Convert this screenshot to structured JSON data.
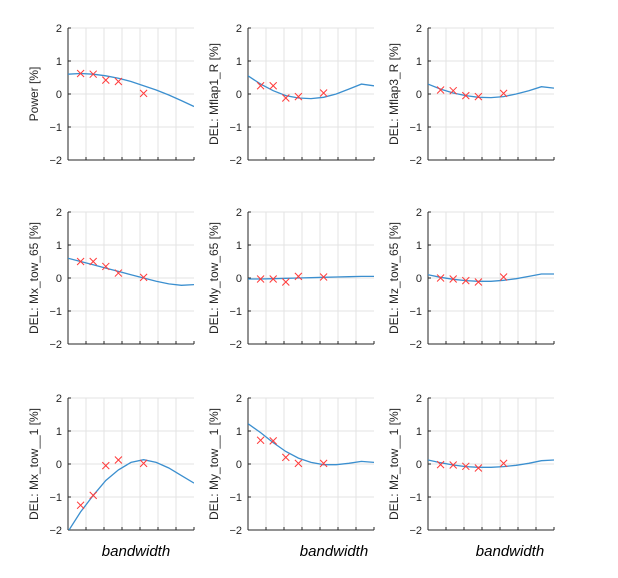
{
  "colors": {
    "fit_line": "#3b8fcf",
    "markers": "#ff3b3b",
    "grid": "#e3e3e3",
    "axis": "#262626"
  },
  "chart_data": [
    {
      "type": "line",
      "ylabel": "Power [%]",
      "ylim": [
        -2,
        2
      ],
      "yticks": [
        "-2",
        "-1",
        "0",
        "1",
        "2"
      ],
      "xlim": [
        0,
        1
      ],
      "grid": true,
      "xticklabels": false,
      "series": [
        {
          "kind": "fit",
          "x": [
            0.0,
            0.1,
            0.2,
            0.3,
            0.4,
            0.5,
            0.6,
            0.7,
            0.8,
            0.9,
            1.0
          ],
          "y": [
            0.6,
            0.62,
            0.6,
            0.55,
            0.48,
            0.38,
            0.25,
            0.12,
            -0.03,
            -0.2,
            -0.38
          ]
        },
        {
          "kind": "markers",
          "marker": "x",
          "x": [
            0.1,
            0.2,
            0.3,
            0.4,
            0.6
          ],
          "y": [
            0.62,
            0.6,
            0.42,
            0.38,
            0.02
          ]
        }
      ]
    },
    {
      "type": "line",
      "ylabel": "DEL: Mflap1_R [%]",
      "ylim": [
        -2,
        2
      ],
      "yticks": [
        "-2",
        "-1",
        "0",
        "1",
        "2"
      ],
      "xlim": [
        0,
        1
      ],
      "grid": true,
      "xticklabels": false,
      "series": [
        {
          "kind": "fit",
          "x": [
            0.0,
            0.1,
            0.2,
            0.3,
            0.4,
            0.5,
            0.6,
            0.7,
            0.8,
            0.9,
            1.0
          ],
          "y": [
            0.55,
            0.3,
            0.1,
            -0.05,
            -0.12,
            -0.14,
            -0.1,
            0.0,
            0.15,
            0.3,
            0.25
          ]
        },
        {
          "kind": "markers",
          "marker": "x",
          "x": [
            0.1,
            0.2,
            0.3,
            0.4,
            0.6
          ],
          "y": [
            0.25,
            0.25,
            -0.12,
            -0.08,
            0.03
          ]
        }
      ]
    },
    {
      "type": "line",
      "ylabel": "DEL: Mflap3_R [%]",
      "ylim": [
        -2,
        2
      ],
      "yticks": [
        "-2",
        "-1",
        "0",
        "1",
        "2"
      ],
      "xlim": [
        0,
        1
      ],
      "grid": true,
      "xticklabels": false,
      "series": [
        {
          "kind": "fit",
          "x": [
            0.0,
            0.1,
            0.2,
            0.3,
            0.4,
            0.5,
            0.6,
            0.7,
            0.8,
            0.9,
            1.0
          ],
          "y": [
            0.3,
            0.15,
            0.03,
            -0.05,
            -0.1,
            -0.11,
            -0.08,
            0.0,
            0.1,
            0.22,
            0.18
          ]
        },
        {
          "kind": "markers",
          "marker": "x",
          "x": [
            0.1,
            0.2,
            0.3,
            0.4,
            0.6
          ],
          "y": [
            0.12,
            0.1,
            -0.05,
            -0.08,
            0.02
          ]
        }
      ]
    },
    {
      "type": "line",
      "ylabel": "DEL: Mx_tow_65 [%]",
      "ylim": [
        -2,
        2
      ],
      "yticks": [
        "-2",
        "-1",
        "0",
        "1",
        "2"
      ],
      "xlim": [
        0,
        1
      ],
      "grid": true,
      "xticklabels": false,
      "series": [
        {
          "kind": "fit",
          "x": [
            0.0,
            0.1,
            0.2,
            0.3,
            0.4,
            0.5,
            0.6,
            0.7,
            0.8,
            0.9,
            1.0
          ],
          "y": [
            0.6,
            0.5,
            0.4,
            0.3,
            0.2,
            0.1,
            0.0,
            -0.1,
            -0.18,
            -0.22,
            -0.2
          ]
        },
        {
          "kind": "markers",
          "marker": "x",
          "x": [
            0.1,
            0.2,
            0.3,
            0.4,
            0.6
          ],
          "y": [
            0.5,
            0.5,
            0.35,
            0.15,
            0.02
          ]
        }
      ]
    },
    {
      "type": "line",
      "ylabel": "DEL: My_tow_65 [%]",
      "ylim": [
        -2,
        2
      ],
      "yticks": [
        "-2",
        "-1",
        "0",
        "1",
        "2"
      ],
      "xlim": [
        0,
        1
      ],
      "grid": true,
      "xticklabels": false,
      "series": [
        {
          "kind": "fit",
          "x": [
            0.0,
            0.1,
            0.2,
            0.3,
            0.4,
            0.5,
            0.6,
            0.7,
            0.8,
            0.9,
            1.0
          ],
          "y": [
            -0.03,
            -0.03,
            -0.02,
            -0.01,
            0.0,
            0.01,
            0.02,
            0.03,
            0.04,
            0.05,
            0.05
          ]
        },
        {
          "kind": "markers",
          "marker": "x",
          "x": [
            0.1,
            0.2,
            0.3,
            0.4,
            0.6
          ],
          "y": [
            -0.03,
            -0.03,
            -0.12,
            0.05,
            0.03
          ]
        }
      ]
    },
    {
      "type": "line",
      "ylabel": "DEL: Mz_tow_65 [%]",
      "ylim": [
        -2,
        2
      ],
      "yticks": [
        "-2",
        "-1",
        "0",
        "1",
        "2"
      ],
      "xlim": [
        0,
        1
      ],
      "grid": true,
      "xticklabels": false,
      "series": [
        {
          "kind": "fit",
          "x": [
            0.0,
            0.1,
            0.2,
            0.3,
            0.4,
            0.5,
            0.6,
            0.7,
            0.8,
            0.9,
            1.0
          ],
          "y": [
            0.1,
            0.02,
            -0.04,
            -0.08,
            -0.1,
            -0.1,
            -0.07,
            -0.02,
            0.05,
            0.12,
            0.12
          ]
        },
        {
          "kind": "markers",
          "marker": "x",
          "x": [
            0.1,
            0.2,
            0.3,
            0.4,
            0.6
          ],
          "y": [
            0.0,
            -0.03,
            -0.08,
            -0.12,
            0.03
          ]
        }
      ]
    },
    {
      "type": "line",
      "ylabel": "DEL: Mx_tow__1 [%]",
      "ylim": [
        -2,
        2
      ],
      "yticks": [
        "-2",
        "-1",
        "0",
        "1",
        "2"
      ],
      "xlim": [
        0,
        1
      ],
      "grid": true,
      "xticklabels": false,
      "xlabel": "bandwidth",
      "series": [
        {
          "kind": "fit",
          "x": [
            0.0,
            0.1,
            0.2,
            0.3,
            0.4,
            0.5,
            0.6,
            0.7,
            0.8,
            0.9,
            1.0
          ],
          "y": [
            -2.05,
            -1.45,
            -0.95,
            -0.5,
            -0.18,
            0.05,
            0.13,
            0.05,
            -0.12,
            -0.35,
            -0.58
          ]
        },
        {
          "kind": "markers",
          "marker": "x",
          "x": [
            0.1,
            0.2,
            0.3,
            0.4,
            0.6
          ],
          "y": [
            -1.25,
            -0.95,
            -0.05,
            0.12,
            0.02
          ]
        }
      ]
    },
    {
      "type": "line",
      "ylabel": "DEL: My_tow__1 [%]",
      "ylim": [
        -2,
        2
      ],
      "yticks": [
        "-2",
        "-1",
        "0",
        "1",
        "2"
      ],
      "xlim": [
        0,
        1
      ],
      "grid": true,
      "xticklabels": false,
      "xlabel": "bandwidth",
      "series": [
        {
          "kind": "fit",
          "x": [
            0.0,
            0.1,
            0.2,
            0.3,
            0.4,
            0.5,
            0.6,
            0.7,
            0.8,
            0.9,
            1.0
          ],
          "y": [
            1.22,
            0.95,
            0.65,
            0.38,
            0.18,
            0.05,
            -0.02,
            -0.02,
            0.02,
            0.08,
            0.05
          ]
        },
        {
          "kind": "markers",
          "marker": "x",
          "x": [
            0.1,
            0.2,
            0.3,
            0.4,
            0.6
          ],
          "y": [
            0.72,
            0.7,
            0.2,
            0.02,
            0.02
          ]
        }
      ]
    },
    {
      "type": "line",
      "ylabel": "DEL: Mz_tow__1 [%]",
      "ylim": [
        -2,
        2
      ],
      "yticks": [
        "-2",
        "-1",
        "0",
        "1",
        "2"
      ],
      "xlim": [
        0,
        1
      ],
      "grid": true,
      "xticklabels": false,
      "xlabel": "bandwidth",
      "series": [
        {
          "kind": "fit",
          "x": [
            0.0,
            0.1,
            0.2,
            0.3,
            0.4,
            0.5,
            0.6,
            0.7,
            0.8,
            0.9,
            1.0
          ],
          "y": [
            0.12,
            0.04,
            -0.03,
            -0.08,
            -0.1,
            -0.1,
            -0.08,
            -0.04,
            0.02,
            0.1,
            0.12
          ]
        },
        {
          "kind": "markers",
          "marker": "x",
          "x": [
            0.1,
            0.2,
            0.3,
            0.4,
            0.6
          ],
          "y": [
            -0.02,
            -0.03,
            -0.07,
            -0.12,
            0.02
          ]
        }
      ]
    }
  ]
}
